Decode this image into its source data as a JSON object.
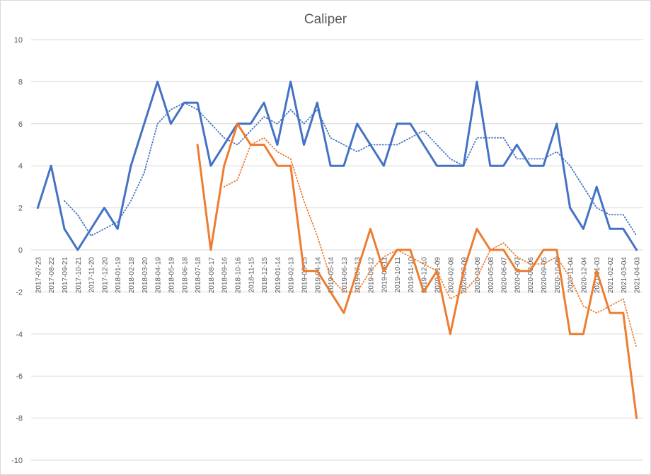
{
  "chart_data": {
    "type": "line",
    "title": "Caliper",
    "xlabel": "",
    "ylabel": "",
    "ylim": [
      -10,
      10
    ],
    "yticks": [
      -10,
      -8,
      -6,
      -4,
      -2,
      0,
      2,
      4,
      6,
      8,
      10
    ],
    "grid": true,
    "legend": "none",
    "x": [
      "2017-07-23",
      "2017-08-22",
      "2017-09-21",
      "2017-10-21",
      "2017-11-20",
      "2017-12-20",
      "2018-01-19",
      "2018-02-18",
      "2018-03-20",
      "2018-04-19",
      "2018-05-19",
      "2018-06-18",
      "2018-07-18",
      "2018-08-17",
      "2018-09-16",
      "2018-10-16",
      "2018-11-15",
      "2018-12-15",
      "2019-01-14",
      "2019-02-13",
      "2019-03-15",
      "2019-04-14",
      "2019-05-14",
      "2019-06-13",
      "2019-07-13",
      "2019-08-12",
      "2019-09-11",
      "2019-10-11",
      "2019-11-10",
      "2019-12-10",
      "2020-01-09",
      "2020-02-08",
      "2020-03-09",
      "2020-04-08",
      "2020-05-08",
      "2020-06-07",
      "2020-07-07",
      "2020-08-06",
      "2020-09-05",
      "2020-10-05",
      "2020-11-04",
      "2020-12-04",
      "2021-01-03",
      "2021-02-02",
      "2021-03-04",
      "2021-04-03"
    ],
    "x_tick_labels": [
      "2017-07-23",
      "2017-08-22",
      "2017-09-21",
      "2017-10-21",
      "2017-11-20",
      "2017-12-20",
      "2018-01-19",
      "2018-02-18",
      "2018-03-20",
      "2018-04-19",
      "2018-05-19",
      "2018-06-18",
      "2018-07-18",
      "2018-08-17",
      "2018-09-16",
      "2018-10-16",
      "2018-11-15",
      "2018-12-15",
      "2019-01-14",
      "2019-02-13",
      "2019-03-15",
      "2019-04-14",
      "2019-05-14",
      "2019-06-13",
      "2019-07-13",
      "2019-08-12",
      "2019-09-11",
      "2019-10-11",
      "2019-11-10",
      "2019-12-10",
      "2020-01-09",
      "2020-02-08",
      "2020-03-09",
      "2020-04-08",
      "2020-05-08",
      "2020-06-07",
      "2020-07-07",
      "2020-08-06",
      "2020-09-05",
      "2020-10-05",
      "2020-11-04",
      "2020-12-04",
      "2021-01-03",
      "2021-02-02",
      "2021-03-04",
      "2021-04-03"
    ],
    "series": [
      {
        "color": "#4472C4",
        "style": "solid",
        "values": [
          2,
          4,
          1,
          0,
          1,
          2,
          1,
          4,
          6,
          8,
          6,
          7,
          7,
          4,
          5,
          6,
          6,
          7,
          5,
          8,
          5,
          7,
          4,
          4,
          6,
          5,
          4,
          6,
          6,
          5,
          4,
          4,
          4,
          8,
          4,
          4,
          5,
          4,
          4,
          6,
          2,
          1,
          3,
          1,
          1,
          0
        ]
      },
      {
        "color": "#4472C4",
        "style": "dotted",
        "values": [
          null,
          null,
          2.33,
          1.67,
          0.67,
          1.0,
          1.33,
          2.33,
          3.67,
          6.0,
          6.67,
          7.0,
          6.67,
          6.0,
          5.33,
          5.0,
          5.67,
          6.33,
          6.0,
          6.67,
          6.0,
          6.67,
          5.33,
          5.0,
          4.67,
          5.0,
          5.0,
          5.0,
          5.33,
          5.67,
          5.0,
          4.33,
          4.0,
          5.33,
          5.33,
          5.33,
          4.33,
          4.33,
          4.33,
          4.67,
          4.0,
          3.0,
          2.0,
          1.67,
          1.67,
          0.67
        ]
      },
      {
        "color": "#ED7D31",
        "style": "solid",
        "values": [
          null,
          null,
          null,
          null,
          null,
          null,
          null,
          null,
          null,
          null,
          null,
          null,
          5,
          0,
          4,
          6,
          5,
          5,
          4,
          4,
          -1,
          -1,
          -2,
          -3,
          -1,
          1,
          -1,
          0,
          0,
          -2,
          -1,
          -4,
          -1,
          1,
          0,
          0,
          -1,
          -1,
          0,
          0,
          -4,
          -4,
          -1,
          -3,
          -3,
          -8
        ]
      },
      {
        "color": "#ED7D31",
        "style": "dotted",
        "values": [
          null,
          null,
          null,
          null,
          null,
          null,
          null,
          null,
          null,
          null,
          null,
          null,
          null,
          null,
          3.0,
          3.33,
          5.0,
          5.33,
          4.67,
          4.33,
          2.33,
          0.67,
          -1.33,
          -2.0,
          -2.0,
          -1.0,
          -0.33,
          0.0,
          -0.33,
          -0.67,
          -1.0,
          -2.33,
          -2.0,
          -1.33,
          0.0,
          0.33,
          -0.33,
          -0.67,
          -0.67,
          -0.33,
          -1.33,
          -2.67,
          -3.0,
          -2.67,
          -2.33,
          -4.67
        ]
      }
    ]
  }
}
